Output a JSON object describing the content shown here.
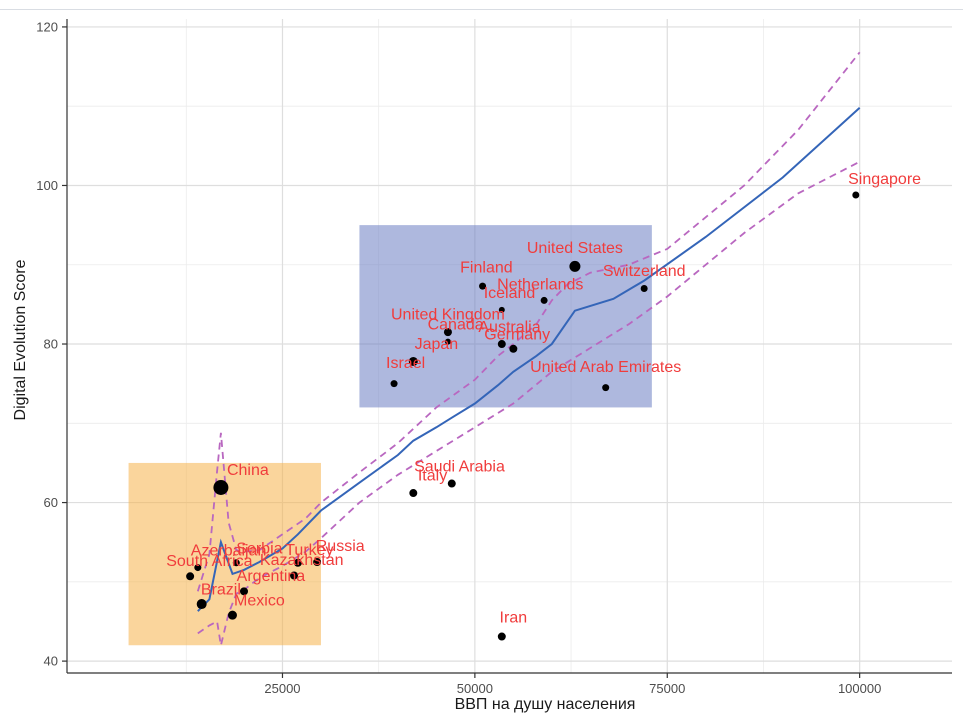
{
  "chart_data": {
    "type": "scatter",
    "title": "",
    "xlabel": "ВВП на душу населения",
    "ylabel": "Digital Evolution Score",
    "xlim": [
      -3000,
      112000
    ],
    "ylim": [
      38.5,
      121
    ],
    "x_ticks": [
      25000,
      50000,
      75000,
      100000
    ],
    "x_tick_labels": [
      "25000",
      "50000",
      "75000",
      "100000"
    ],
    "y_ticks": [
      40,
      60,
      80,
      100,
      120
    ],
    "y_tick_labels": [
      "40",
      "60",
      "80",
      "100",
      "120"
    ],
    "grid": true,
    "colors": {
      "point": "#000000",
      "point_label": "#f03c3c",
      "trend_line": "#3465b8",
      "confidence_band": "#b967c0",
      "developed_box": "#6b7ec3",
      "emerging_box": "#f5b24a"
    },
    "regions": [
      {
        "x": [
          35000,
          73000
        ],
        "y": [
          72,
          95
        ],
        "color": "#6b7ec3"
      },
      {
        "x": [
          5000,
          30000
        ],
        "y": [
          42,
          65
        ],
        "color": "#f5b24a"
      }
    ],
    "points": [
      {
        "label": "Singapore",
        "x": 99500,
        "y": 98.8,
        "size": 4
      },
      {
        "label": "United States",
        "x": 63000,
        "y": 89.8,
        "size": 8
      },
      {
        "label": "Switzerland",
        "x": 72000,
        "y": 87.0,
        "size": 4
      },
      {
        "label": "Finland",
        "x": 51000,
        "y": 87.3,
        "size": 4
      },
      {
        "label": "Netherlands",
        "x": 59000,
        "y": 85.5,
        "size": 4
      },
      {
        "label": "Iceland",
        "x": 53500,
        "y": 84.3,
        "size": 3
      },
      {
        "label": "United Kingdom",
        "x": 46500,
        "y": 81.5,
        "size": 5
      },
      {
        "label": "Canada",
        "x": 46500,
        "y": 80.3,
        "size": 3
      },
      {
        "label": "Australia",
        "x": 53500,
        "y": 80.0,
        "size": 5
      },
      {
        "label": "Germany",
        "x": 55000,
        "y": 79.4,
        "size": 5
      },
      {
        "label": "Japan",
        "x": 42000,
        "y": 77.8,
        "size": 6
      },
      {
        "label": "Israel",
        "x": 39500,
        "y": 75.0,
        "size": 4
      },
      {
        "label": "United Arab Emirates",
        "x": 67000,
        "y": 74.5,
        "size": 4
      },
      {
        "label": "Saudi Arabia",
        "x": 47000,
        "y": 62.4,
        "size": 5
      },
      {
        "label": "Italy",
        "x": 42000,
        "y": 61.2,
        "size": 5
      },
      {
        "label": "China",
        "x": 17000,
        "y": 61.9,
        "size": 12
      },
      {
        "label": "Iran",
        "x": 53500,
        "y": 43.1,
        "size": 5
      },
      {
        "label": "Russia",
        "x": 29500,
        "y": 52.5,
        "size": 5
      },
      {
        "label": "Serbia",
        "x": 19000,
        "y": 52.4,
        "size": 4
      },
      {
        "label": "Turkey",
        "x": 27000,
        "y": 52.4,
        "size": 5
      },
      {
        "label": "Azerbaijan",
        "x": 14000,
        "y": 51.8,
        "size": 4
      },
      {
        "label": "Kazakhstan",
        "x": 26500,
        "y": 50.8,
        "size": 5
      },
      {
        "label": "South Africa",
        "x": 13000,
        "y": 50.7,
        "size": 5
      },
      {
        "label": "Argentina",
        "x": 20000,
        "y": 48.8,
        "size": 5
      },
      {
        "label": "Brazil",
        "x": 14500,
        "y": 47.2,
        "size": 7
      },
      {
        "label": "Mexico",
        "x": 18500,
        "y": 45.8,
        "size": 6
      }
    ],
    "label_text": [
      {
        "text": "Singapore",
        "x": 98500,
        "y": 100.2,
        "anchor": "start"
      },
      {
        "text": "United States",
        "x": 63000,
        "y": 91.5,
        "anchor": "middle"
      },
      {
        "text": "Switzerland",
        "x": 72000,
        "y": 88.6,
        "anchor": "middle"
      },
      {
        "text": "Finland",
        "x": 51500,
        "y": 89.0,
        "anchor": "middle"
      },
      {
        "text": "Netherlands",
        "x": 58500,
        "y": 86.9,
        "anchor": "middle"
      },
      {
        "text": "Iceland",
        "x": 54500,
        "y": 85.8,
        "anchor": "middle"
      },
      {
        "text": "United Kingdom",
        "x": 46500,
        "y": 83.1,
        "anchor": "middle"
      },
      {
        "text": "Canada",
        "x": 47500,
        "y": 81.8,
        "anchor": "middle"
      },
      {
        "text": "Australia",
        "x": 54500,
        "y": 81.5,
        "anchor": "middle"
      },
      {
        "text": "Germany",
        "x": 55500,
        "y": 80.6,
        "anchor": "middle"
      },
      {
        "text": "Japan",
        "x": 45000,
        "y": 79.4,
        "anchor": "middle"
      },
      {
        "text": "Israel",
        "x": 41000,
        "y": 77.0,
        "anchor": "middle"
      },
      {
        "text": "United Arab Emirates",
        "x": 67000,
        "y": 76.5,
        "anchor": "middle"
      },
      {
        "text": "Saudi Arabia",
        "x": 48000,
        "y": 63.9,
        "anchor": "middle"
      },
      {
        "text": "Italy",
        "x": 44500,
        "y": 62.8,
        "anchor": "middle"
      },
      {
        "text": "China",
        "x": 20500,
        "y": 63.5,
        "anchor": "middle"
      },
      {
        "text": "Iran",
        "x": 55000,
        "y": 44.9,
        "anchor": "middle"
      },
      {
        "text": "Russia",
        "x": 32500,
        "y": 53.9,
        "anchor": "middle"
      },
      {
        "text": "Serbia",
        "x": 22000,
        "y": 53.6,
        "anchor": "middle"
      },
      {
        "text": "Turkey",
        "x": 28500,
        "y": 53.4,
        "anchor": "middle"
      },
      {
        "text": "Azerbaijan",
        "x": 18000,
        "y": 53.3,
        "anchor": "middle"
      },
      {
        "text": "Kazakhstan",
        "x": 27500,
        "y": 52.1,
        "anchor": "middle"
      },
      {
        "text": "South Africa",
        "x": 15500,
        "y": 52.0,
        "anchor": "middle"
      },
      {
        "text": "Argentina",
        "x": 23500,
        "y": 50.1,
        "anchor": "middle"
      },
      {
        "text": "Brazil",
        "x": 17000,
        "y": 48.4,
        "anchor": "middle"
      },
      {
        "text": "Mexico",
        "x": 22000,
        "y": 47.0,
        "anchor": "middle"
      }
    ],
    "trend_line": [
      [
        14000,
        46.3
      ],
      [
        15500,
        47.8
      ],
      [
        17000,
        55.0
      ],
      [
        18500,
        51.0
      ],
      [
        20000,
        51.5
      ],
      [
        22000,
        52.5
      ],
      [
        25000,
        54.2
      ],
      [
        27000,
        56.0
      ],
      [
        30000,
        59.0
      ],
      [
        35000,
        62.5
      ],
      [
        40000,
        66.0
      ],
      [
        42000,
        67.8
      ],
      [
        45000,
        69.5
      ],
      [
        47000,
        70.7
      ],
      [
        50000,
        72.5
      ],
      [
        53000,
        74.8
      ],
      [
        55000,
        76.5
      ],
      [
        58000,
        78.5
      ],
      [
        60000,
        80.0
      ],
      [
        63000,
        84.2
      ],
      [
        68000,
        85.7
      ],
      [
        72000,
        88.0
      ],
      [
        80000,
        93.5
      ],
      [
        90000,
        101.0
      ],
      [
        100000,
        109.8
      ]
    ],
    "upper_band": [
      [
        14000,
        48.8
      ],
      [
        15500,
        53.5
      ],
      [
        16500,
        64.0
      ],
      [
        17000,
        68.8
      ],
      [
        18000,
        57.5
      ],
      [
        19000,
        54.0
      ],
      [
        20000,
        53.8
      ],
      [
        22000,
        54.0
      ],
      [
        25000,
        56.0
      ],
      [
        28000,
        58.0
      ],
      [
        30000,
        60.0
      ],
      [
        35000,
        63.8
      ],
      [
        40000,
        67.5
      ],
      [
        45000,
        72.0
      ],
      [
        50000,
        75.5
      ],
      [
        53000,
        78.5
      ],
      [
        55000,
        80.0
      ],
      [
        58000,
        82.5
      ],
      [
        60000,
        85.5
      ],
      [
        62000,
        87.5
      ],
      [
        65000,
        89.0
      ],
      [
        70000,
        90.0
      ],
      [
        75000,
        92.0
      ],
      [
        85000,
        100.0
      ],
      [
        92000,
        107.0
      ],
      [
        100000,
        116.8
      ]
    ],
    "lower_band": [
      [
        14000,
        43.5
      ],
      [
        15500,
        44.5
      ],
      [
        16500,
        45.0
      ],
      [
        17000,
        42.0
      ],
      [
        18000,
        46.0
      ],
      [
        19000,
        48.5
      ],
      [
        20000,
        49.0
      ],
      [
        22000,
        50.5
      ],
      [
        25000,
        52.0
      ],
      [
        28000,
        53.8
      ],
      [
        30000,
        55.5
      ],
      [
        35000,
        60.0
      ],
      [
        40000,
        63.5
      ],
      [
        45000,
        66.5
      ],
      [
        50000,
        69.5
      ],
      [
        55000,
        72.5
      ],
      [
        60000,
        76.5
      ],
      [
        65000,
        79.5
      ],
      [
        70000,
        82.5
      ],
      [
        75000,
        86.0
      ],
      [
        85000,
        94.0
      ],
      [
        92000,
        99.0
      ],
      [
        100000,
        103.0
      ]
    ]
  }
}
